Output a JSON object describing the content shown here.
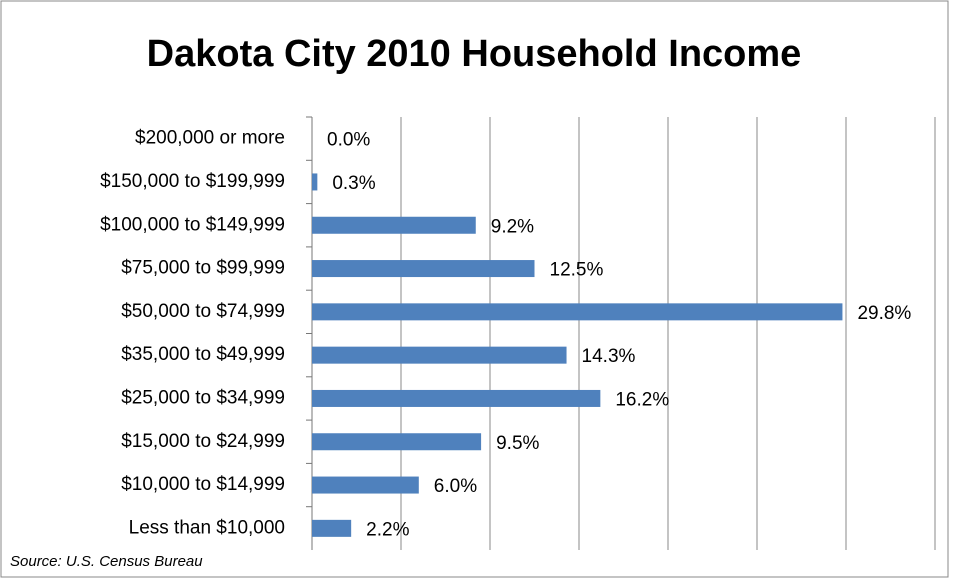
{
  "chart_data": {
    "type": "bar",
    "orientation": "horizontal",
    "title": "Dakota City 2010 Household Income",
    "source": "Source: U.S. Census Bureau",
    "categories": [
      "$200,000 or more",
      "$150,000 to $199,999",
      "$100,000 to $149,999",
      "$75,000 to $99,999",
      "$50,000 to $74,999",
      "$35,000 to $49,999",
      "$25,000 to $34,999",
      "$15,000 to $24,999",
      "$10,000 to $14,999",
      "Less than $10,000"
    ],
    "values": [
      0.0,
      0.3,
      9.2,
      12.5,
      29.8,
      14.3,
      16.2,
      9.5,
      6.0,
      2.2
    ],
    "value_labels": [
      "0.0%",
      "0.3%",
      "9.2%",
      "12.5%",
      "29.8%",
      "14.3%",
      "16.2%",
      "9.5%",
      "6.0%",
      "2.2%"
    ],
    "color": "#4f81bd",
    "xlim": [
      0,
      35
    ],
    "xticks": [
      0,
      5,
      10,
      15,
      20,
      25,
      30,
      35
    ],
    "grid": true
  }
}
